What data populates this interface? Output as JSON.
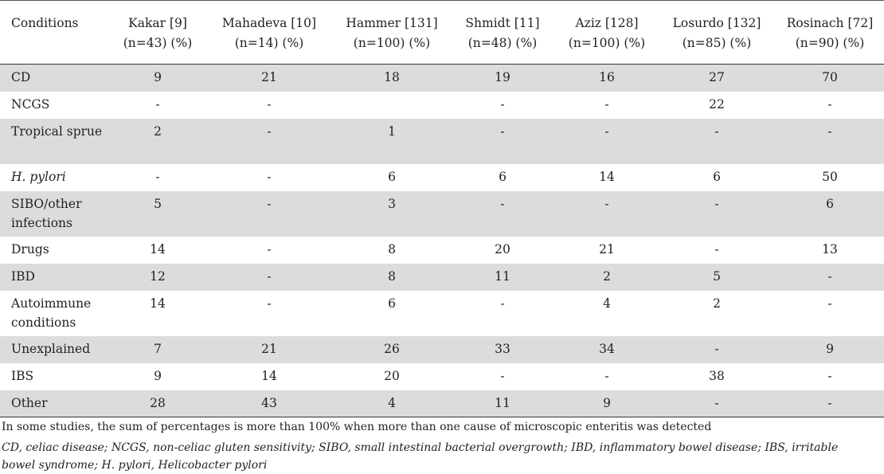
{
  "headers": [
    {
      "name": "Conditions",
      "n": ""
    },
    {
      "name": "Kakar [9]",
      "n": "(n=43) (%)"
    },
    {
      "name": "Mahadeva [10]",
      "n": "(n=14) (%)"
    },
    {
      "name": "Hammer [131]",
      "n": "(n=100) (%)"
    },
    {
      "name": "Shmidt [11]",
      "n": "(n=48) (%)"
    },
    {
      "name": "Aziz [128]",
      "n": "(n=100) (%)"
    },
    {
      "name": "Losurdo [132]",
      "n": "(n=85) (%)"
    },
    {
      "name": "Rosinach [72]",
      "n": "(n=90) (%)"
    }
  ],
  "rows": [
    {
      "condition": "CD",
      "values": [
        "9",
        "21",
        "18",
        "19",
        "16",
        "27",
        "70"
      ]
    },
    {
      "condition": "NCGS",
      "values": [
        "-",
        "-",
        "",
        "-",
        "-",
        "22",
        "-"
      ]
    },
    {
      "condition": "Tropical sprue",
      "values": [
        "2",
        "-",
        "1",
        "-",
        "-",
        "-",
        "-"
      ]
    },
    {
      "condition": "H. pylori",
      "values": [
        "-",
        "-",
        "6",
        "6",
        "14",
        "6",
        "50"
      ]
    },
    {
      "condition": "SIBO/other infections",
      "values": [
        "5",
        "-",
        "3",
        "-",
        "-",
        "-",
        "6"
      ]
    },
    {
      "condition": "Drugs",
      "values": [
        "14",
        "-",
        "8",
        "20",
        "21",
        "-",
        "13"
      ]
    },
    {
      "condition": "IBD",
      "values": [
        "12",
        "-",
        "8",
        "11",
        "2",
        "5",
        "-"
      ]
    },
    {
      "condition": "Autoimmune conditions",
      "values": [
        "14",
        "-",
        "6",
        "-",
        "4",
        "2",
        "-"
      ]
    },
    {
      "condition": "Unexplained",
      "values": [
        "7",
        "21",
        "26",
        "33",
        "34",
        "-",
        "9"
      ]
    },
    {
      "condition": "IBS",
      "values": [
        "9",
        "14",
        "20",
        "-",
        "-",
        "38",
        "-"
      ]
    },
    {
      "condition": "Other",
      "values": [
        "28",
        "43",
        "4",
        "11",
        "9",
        "-",
        "-"
      ]
    }
  ],
  "notes": {
    "line1": "In some studies, the sum of percentages is more than 100% when more than one cause of microscopic enteritis was detected",
    "line2": "CD, celiac disease; NCGS, non-celiac gluten sensitivity; SIBO, small intestinal bacterial overgrowth; IBD, inflammatory bowel disease; IBS, irritable bowel syndrome; H. pylori, Helicobacter pylori"
  }
}
